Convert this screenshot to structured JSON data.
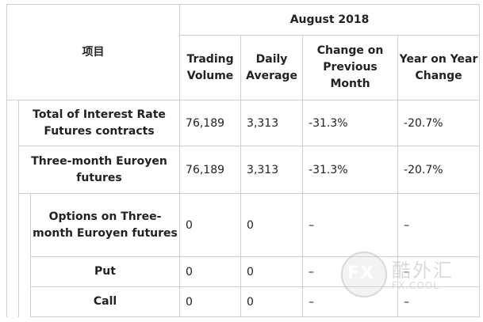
{
  "header": {
    "item_label": "项目",
    "period": "August   2018",
    "col_trading_volume": "Trading Volume",
    "col_daily_average": "Daily Average",
    "col_change_prev": "Change on Previous Month",
    "col_year_change": "Year on Year Change"
  },
  "rows": [
    {
      "label": "Total of Interest Rate Futures contracts",
      "trading_volume": "76,189",
      "daily_average": "3,313",
      "change_prev": "-31.3%",
      "year_change": "-20.7%"
    },
    {
      "label": "Three-month Euroyen futures",
      "trading_volume": "76,189",
      "daily_average": "3,313",
      "change_prev": "-31.3%",
      "year_change": "-20.7%"
    },
    {
      "label": "Options on Three-month Euroyen futures",
      "trading_volume": "0",
      "daily_average": "0",
      "change_prev": "–",
      "year_change": "–"
    },
    {
      "label": "Put",
      "trading_volume": "0",
      "daily_average": "0",
      "change_prev": "–",
      "year_change": "–"
    },
    {
      "label": "Call",
      "trading_volume": "0",
      "daily_average": "0",
      "change_prev": "–",
      "year_change": "–"
    }
  ],
  "watermark": {
    "logo": "FX",
    "cn_text": "酷外汇",
    "en_text": "FX.COOL"
  }
}
